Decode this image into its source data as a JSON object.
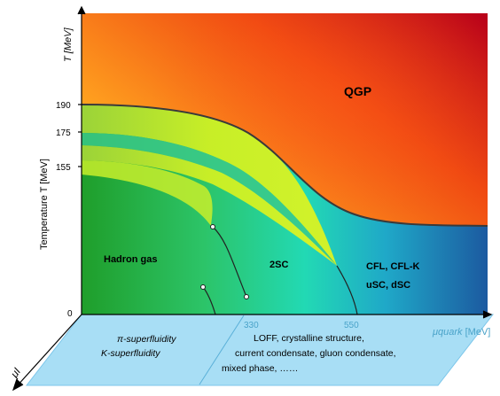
{
  "axes": {
    "temperature_label": "Temperature T [MeV]",
    "top_axis_label": "T [MeV]",
    "mu_quark_symbol": "μquark",
    "mu_quark_unit": "[MeV]",
    "mu_i_label": "μI",
    "temperature_ticks": [
      "190",
      "175",
      "155",
      "0"
    ],
    "mu_ticks": [
      "330",
      "550"
    ]
  },
  "regions": {
    "qgp": "QGP",
    "hadron_gas": "Hadron gas",
    "two_sc": "2SC",
    "cfl": "CFL,  CFL-K",
    "usc_dsc": "uSC, dSC"
  },
  "floor": {
    "pi_superfluidity": "π-superfluidity",
    "k_superfluidity": "K-superfluidity",
    "loff_line1": "LOFF, crystalline structure,",
    "loff_line2": "current condensate, gluon condensate,",
    "loff_line3": "mixed phase,   ……"
  },
  "colors": {
    "qgp_hot": "#c0001a",
    "qgp_warm": "#ff8c1a",
    "hadron_green": "#2ea82e",
    "crossover_yellow": "#d8f020",
    "cfl_blue": "#1d5fa8",
    "floor_blue": "#a8def5"
  }
}
